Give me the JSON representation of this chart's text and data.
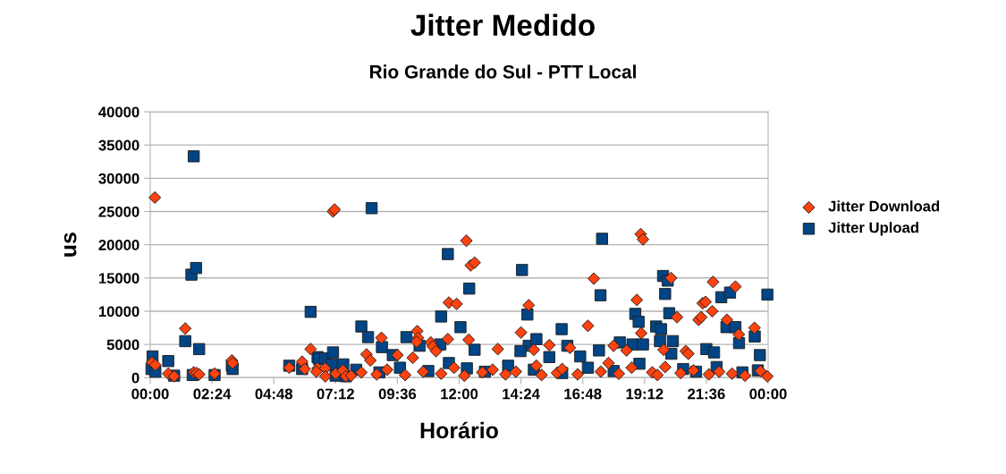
{
  "chart_data": {
    "type": "scatter",
    "title": "Jitter Medido",
    "subtitle": "Rio Grande do Sul - PTT Local",
    "xlabel": "Horário",
    "ylabel": "us",
    "xlim": [
      0,
      24
    ],
    "xticks": [
      {
        "value": 0,
        "label": "00:00"
      },
      {
        "value": 2.4,
        "label": "02:24"
      },
      {
        "value": 4.8,
        "label": "04:48"
      },
      {
        "value": 7.2,
        "label": "07:12"
      },
      {
        "value": 9.6,
        "label": "09:36"
      },
      {
        "value": 12,
        "label": "12:00"
      },
      {
        "value": 14.4,
        "label": "14:24"
      },
      {
        "value": 16.8,
        "label": "16:48"
      },
      {
        "value": 19.2,
        "label": "19:12"
      },
      {
        "value": 21.6,
        "label": "21:36"
      },
      {
        "value": 24,
        "label": "00:00"
      }
    ],
    "ylim": [
      0,
      40000
    ],
    "yticks": [
      0,
      5000,
      10000,
      15000,
      20000,
      25000,
      30000,
      35000,
      40000
    ],
    "grid": "y",
    "legend": "right",
    "series": [
      {
        "name": "Jitter Download",
        "color": "#ff420e",
        "marker": "diamond",
        "x": [
          0.18,
          0.07,
          0.2,
          1.36,
          0.7,
          0.93,
          1.69,
          1.8,
          1.9,
          2.5,
          3.17,
          3.2,
          5.4,
          5.9,
          6.0,
          6.23,
          6.5,
          6.45,
          6.8,
          6.8,
          7.1,
          7.16,
          7.2,
          7.48,
          7.6,
          7.8,
          8.4,
          8.55,
          8.98,
          9.6,
          10.2,
          10.37,
          10.4,
          10.35,
          10.9,
          10.97,
          11.1,
          11.6,
          11.9,
          11.56,
          12.28,
          12.45,
          12.6,
          12.37,
          13.5,
          14.4,
          14.7,
          14.9,
          15.5,
          16.3,
          17.0,
          17.23,
          18.0,
          18.5,
          18.9,
          19.05,
          19.14,
          19.07,
          19.94,
          20.23,
          20.46,
          20.8,
          20.9,
          21.3,
          21.4,
          21.46,
          21.57,
          21.83,
          21.86,
          22.4,
          22.73,
          22.86,
          23.47,
          23.97,
          8.2,
          8.8,
          9.2,
          9.9,
          10.6,
          11.3,
          11.8,
          12.2,
          12.9,
          13.3,
          13.8,
          14.2,
          15.0,
          15.2,
          15.8,
          16.0,
          16.6,
          17.5,
          17.8,
          18.2,
          18.7,
          19.5,
          19.7,
          20.0,
          20.6,
          21.1,
          21.7,
          22.1,
          22.6,
          23.1,
          23.7
        ],
        "values": [
          27100,
          2300,
          1900,
          7400,
          600,
          200,
          800,
          700,
          500,
          600,
          2600,
          2200,
          1500,
          2400,
          1300,
          4300,
          1400,
          900,
          1400,
          200,
          25000,
          25300,
          600,
          1100,
          200,
          300,
          3500,
          2600,
          6000,
          3400,
          3000,
          7000,
          6000,
          5400,
          5300,
          4700,
          4000,
          11300,
          11100,
          5800,
          20600,
          16900,
          17300,
          5700,
          4300,
          6800,
          10900,
          4200,
          4900,
          4500,
          7800,
          14900,
          4800,
          4100,
          11700,
          21600,
          20800,
          6700,
          4200,
          15000,
          9100,
          4000,
          3600,
          8700,
          9100,
          11200,
          11400,
          10000,
          14400,
          8700,
          13700,
          6500,
          7500,
          200,
          800,
          500,
          1200,
          400,
          900,
          600,
          1500,
          300,
          800,
          1200,
          500,
          900,
          1800,
          400,
          700,
          1300,
          500,
          900,
          2200,
          600,
          1500,
          800,
          400,
          1600,
          700,
          1100,
          500,
          900,
          600,
          300,
          1000
        ]
      },
      {
        "name": "Jitter Upload",
        "color": "#004586",
        "marker": "square",
        "x": [
          0.09,
          0.05,
          0.2,
          0.7,
          0.93,
          1.36,
          1.69,
          1.6,
          1.78,
          1.9,
          1.65,
          2.5,
          3.17,
          3.2,
          5.4,
          5.9,
          6.23,
          6.5,
          6.55,
          6.8,
          7.1,
          7.05,
          7.5,
          7.2,
          7.6,
          8.2,
          8.46,
          8.6,
          9.0,
          9.42,
          9.95,
          10.46,
          11.3,
          11.27,
          11.56,
          12.05,
          12.39,
          12.6,
          14.44,
          14.65,
          14.7,
          15.0,
          14.38,
          15.5,
          15.98,
          16.2,
          16.7,
          17.43,
          17.55,
          17.49,
          18.24,
          18.73,
          18.84,
          18.97,
          19.14,
          19.65,
          19.84,
          19.92,
          20.1,
          20.0,
          20.16,
          19.8,
          20.3,
          20.24,
          21.6,
          21.9,
          22.18,
          22.52,
          22.38,
          22.73,
          22.87,
          23.48,
          23.68,
          23.97,
          23.6,
          8.0,
          8.9,
          9.7,
          10.8,
          11.6,
          12.3,
          13.0,
          13.9,
          14.9,
          16.0,
          17.0,
          18.0,
          19.0,
          20.7,
          21.2,
          22.0,
          23.0
        ],
        "values": [
          3200,
          1300,
          900,
          2500,
          300,
          5500,
          33300,
          15500,
          16500,
          4300,
          400,
          400,
          1800,
          1300,
          1800,
          1300,
          9900,
          3100,
          2800,
          2900,
          3800,
          2000,
          2000,
          300,
          200,
          7700,
          6100,
          25500,
          4600,
          3400,
          6100,
          4800,
          9200,
          5000,
          18600,
          7600,
          13400,
          4200,
          16200,
          9500,
          4800,
          5800,
          4000,
          3100,
          7300,
          4800,
          3200,
          4100,
          20900,
          12400,
          5300,
          5000,
          9600,
          8400,
          5000,
          7700,
          7300,
          15300,
          14600,
          12600,
          9700,
          5500,
          5500,
          3600,
          4300,
          3800,
          12100,
          12800,
          7600,
          7600,
          5200,
          6200,
          3400,
          12500,
          1100,
          1200,
          800,
          1500,
          1000,
          2200,
          1400,
          900,
          1800,
          1200,
          700,
          1500,
          1000,
          2100,
          1300,
          900,
          1600,
          800
        ]
      }
    ]
  }
}
